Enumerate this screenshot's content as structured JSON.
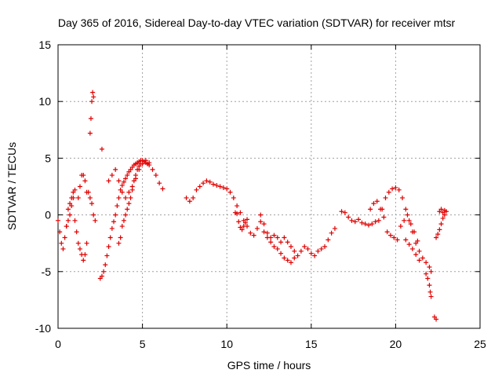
{
  "chart_data": {
    "type": "scatter",
    "title": "Day 365 of 2016, Sidereal Day-to-day VTEC variation (SDTVAR) for receiver mtsr",
    "xlabel": "GPS time / hours",
    "ylabel": "SDTVAR / TECUs",
    "xlim": [
      0,
      25
    ],
    "ylim": [
      -10,
      15
    ],
    "xticks": [
      0,
      5,
      10,
      15,
      20,
      25
    ],
    "yticks": [
      -10,
      -5,
      0,
      5,
      10,
      15
    ],
    "x_tick_labels": [
      "0",
      "5",
      "10",
      "15",
      "20",
      "25"
    ],
    "y_tick_labels": [
      "-10",
      "-5",
      "0",
      "5",
      "10",
      "15"
    ],
    "grid": true,
    "marker": "plus",
    "color": "#e00000",
    "series": [
      {
        "name": "t0",
        "x": [
          0.0,
          0.1,
          0.2,
          0.3,
          0.4,
          0.5,
          0.6,
          0.7,
          0.8,
          0.9
        ],
        "y": [
          -0.5,
          -1.5,
          -2.5,
          -3.0,
          -2.0,
          -1.0,
          0.5,
          1.0,
          1.5,
          2.0
        ]
      },
      {
        "name": "t1",
        "x": [
          0.5,
          0.6,
          0.7,
          0.8,
          0.9,
          1.0
        ],
        "y": [
          -1.0,
          -0.5,
          0.0,
          0.8,
          1.5,
          2.2
        ]
      },
      {
        "name": "t2",
        "x": [
          1.0,
          1.1,
          1.2,
          1.3,
          1.4,
          1.5,
          1.6,
          1.7
        ],
        "y": [
          -0.5,
          -1.5,
          -2.5,
          -3.0,
          -3.5,
          -4.0,
          -3.5,
          -2.5
        ]
      },
      {
        "name": "t3",
        "x": [
          1.2,
          1.3,
          1.4,
          1.5,
          1.6,
          1.7
        ],
        "y": [
          1.5,
          2.5,
          3.5,
          3.5,
          3.0,
          2.0
        ]
      },
      {
        "name": "t4",
        "x": [
          1.9,
          1.95,
          2.0,
          2.05,
          2.1
        ],
        "y": [
          7.2,
          8.5,
          10.0,
          10.8,
          10.4
        ]
      },
      {
        "name": "t5",
        "x": [
          1.8,
          1.9,
          2.0,
          2.1,
          2.2
        ],
        "y": [
          2.0,
          1.5,
          1.0,
          0.0,
          -0.5
        ]
      },
      {
        "name": "t6",
        "x": [
          2.6
        ],
        "y": [
          5.8
        ]
      },
      {
        "name": "t7",
        "x": [
          2.5,
          2.6,
          2.7,
          2.8,
          2.9,
          3.0,
          3.1,
          3.2,
          3.3,
          3.4,
          3.5,
          3.6,
          3.7,
          3.8,
          3.9,
          4.0,
          4.1,
          4.2,
          4.3,
          4.4,
          4.5,
          4.6,
          4.7,
          4.8,
          4.9,
          5.0,
          5.1,
          5.2,
          5.3,
          5.4
        ],
        "y": [
          -5.6,
          -5.4,
          -5.0,
          -4.4,
          -3.6,
          -2.8,
          -2.0,
          -1.2,
          -0.6,
          0.0,
          0.8,
          1.5,
          2.2,
          2.6,
          2.9,
          3.2,
          3.5,
          3.8,
          4.0,
          4.2,
          4.4,
          4.5,
          4.6,
          4.7,
          4.8,
          4.8,
          4.7,
          4.6,
          4.5,
          4.4
        ]
      },
      {
        "name": "t8",
        "x": [
          3.0,
          3.2,
          3.4,
          3.6,
          3.8,
          4.0,
          4.2,
          4.4,
          4.6,
          4.8,
          5.0,
          5.2,
          5.4,
          5.6,
          5.8,
          6.0,
          6.2
        ],
        "y": [
          3.0,
          3.5,
          4.0,
          3.0,
          2.0,
          1.5,
          2.0,
          2.5,
          3.2,
          4.0,
          4.5,
          4.8,
          4.6,
          4.0,
          3.5,
          2.8,
          2.3
        ]
      },
      {
        "name": "t9",
        "x": [
          3.6,
          3.7,
          3.8,
          3.9,
          4.0,
          4.1,
          4.2,
          4.3,
          4.4,
          4.5,
          4.6,
          4.7,
          4.8,
          4.9
        ],
        "y": [
          -2.5,
          -2.0,
          -1.0,
          -0.5,
          0.0,
          0.5,
          1.0,
          1.5,
          2.2,
          3.0,
          3.5,
          4.0,
          4.3,
          4.5
        ]
      },
      {
        "name": "t10",
        "x": [
          7.6,
          7.8,
          8.0,
          8.2,
          8.4,
          8.6,
          8.8,
          9.0,
          9.2,
          9.4,
          9.6,
          9.8,
          10.0,
          10.2,
          10.4,
          10.6,
          10.8,
          11.0,
          11.2,
          11.4,
          11.6,
          11.8,
          12.0,
          12.2,
          12.4,
          12.6,
          12.8,
          13.0,
          13.2,
          13.4,
          13.6,
          13.8,
          14.0
        ],
        "y": [
          1.5,
          1.2,
          1.5,
          2.2,
          2.5,
          2.8,
          3.0,
          2.9,
          2.7,
          2.6,
          2.5,
          2.4,
          2.3,
          2.0,
          1.5,
          0.8,
          0.2,
          -0.5,
          -1.0,
          -1.6,
          -1.8,
          -1.2,
          -0.6,
          -1.5,
          -2.0,
          -2.4,
          -2.8,
          -3.0,
          -3.4,
          -3.8,
          -4.0,
          -4.2,
          -3.8
        ]
      },
      {
        "name": "t11",
        "x": [
          10.5,
          10.6
        ],
        "y": [
          0.2,
          0.1
        ]
      },
      {
        "name": "t12",
        "x": [
          10.7,
          10.8,
          10.9,
          11.0,
          11.1,
          11.2
        ],
        "y": [
          -0.6,
          -1.1,
          -1.3,
          -1.0,
          -0.7,
          -0.4
        ]
      },
      {
        "name": "t13",
        "x": [
          12.0,
          12.2,
          12.4,
          12.6,
          12.8,
          13.0,
          13.2,
          13.4,
          13.6,
          13.8,
          14.0,
          14.2,
          14.4,
          14.6,
          14.8,
          15.0,
          15.2,
          15.4,
          15.6,
          15.8,
          16.0,
          16.2,
          16.4
        ],
        "y": [
          0.0,
          -0.8,
          -1.6,
          -2.0,
          -1.8,
          -2.0,
          -2.4,
          -2.0,
          -2.4,
          -2.8,
          -3.2,
          -3.6,
          -3.2,
          -2.8,
          -3.0,
          -3.4,
          -3.6,
          -3.2,
          -3.0,
          -2.8,
          -2.2,
          -1.6,
          -1.2
        ]
      },
      {
        "name": "t14",
        "x": [
          16.8,
          17.0,
          17.2,
          17.4,
          17.6,
          17.8,
          18.0,
          18.2,
          18.4,
          18.6,
          18.8,
          19.0,
          19.2,
          19.4,
          19.6,
          19.8,
          20.0,
          20.2,
          20.4,
          20.6,
          20.8,
          21.0,
          21.2,
          21.4,
          21.6,
          21.8,
          22.0,
          22.1
        ],
        "y": [
          0.3,
          0.2,
          -0.2,
          -0.5,
          -0.6,
          -0.4,
          -0.7,
          -0.8,
          -0.9,
          -0.8,
          -0.6,
          -0.5,
          0.5,
          1.5,
          2.0,
          2.3,
          2.4,
          2.2,
          1.5,
          0.5,
          -0.5,
          -1.5,
          -2.5,
          -3.2,
          -3.8,
          -4.2,
          -4.6,
          -5.0
        ]
      },
      {
        "name": "t15",
        "x": [
          18.5,
          18.7,
          18.9,
          19.1,
          19.3,
          19.5,
          19.7,
          19.9,
          20.1,
          20.3,
          20.5,
          20.7,
          20.9,
          21.1,
          21.3
        ],
        "y": [
          0.5,
          1.0,
          1.2,
          0.5,
          -0.2,
          -1.5,
          -1.8,
          -2.0,
          -2.2,
          -1.0,
          -0.5,
          0.0,
          -0.8,
          -1.5,
          -2.3
        ]
      },
      {
        "name": "t16",
        "x": [
          20.6,
          20.8,
          21.0,
          21.2,
          21.4
        ],
        "y": [
          -2.2,
          -2.6,
          -3.0,
          -3.5,
          -4.0
        ]
      },
      {
        "name": "t17",
        "x": [
          21.8,
          21.9,
          22.0,
          22.05,
          22.1
        ],
        "y": [
          -5.2,
          -5.6,
          -6.2,
          -6.8,
          -7.2
        ]
      },
      {
        "name": "t18",
        "x": [
          22.3,
          22.4
        ],
        "y": [
          -9.0,
          -9.2
        ]
      },
      {
        "name": "t19",
        "x": [
          22.4,
          22.5,
          22.6,
          22.7,
          22.8,
          22.9
        ],
        "y": [
          -2.0,
          -1.7,
          -1.3,
          -0.8,
          -0.3,
          0.0
        ]
      },
      {
        "name": "t20",
        "x": [
          22.6,
          22.7,
          22.8,
          22.9,
          23.0
        ],
        "y": [
          0.3,
          0.5,
          0.2,
          0.4,
          0.3
        ]
      }
    ]
  }
}
